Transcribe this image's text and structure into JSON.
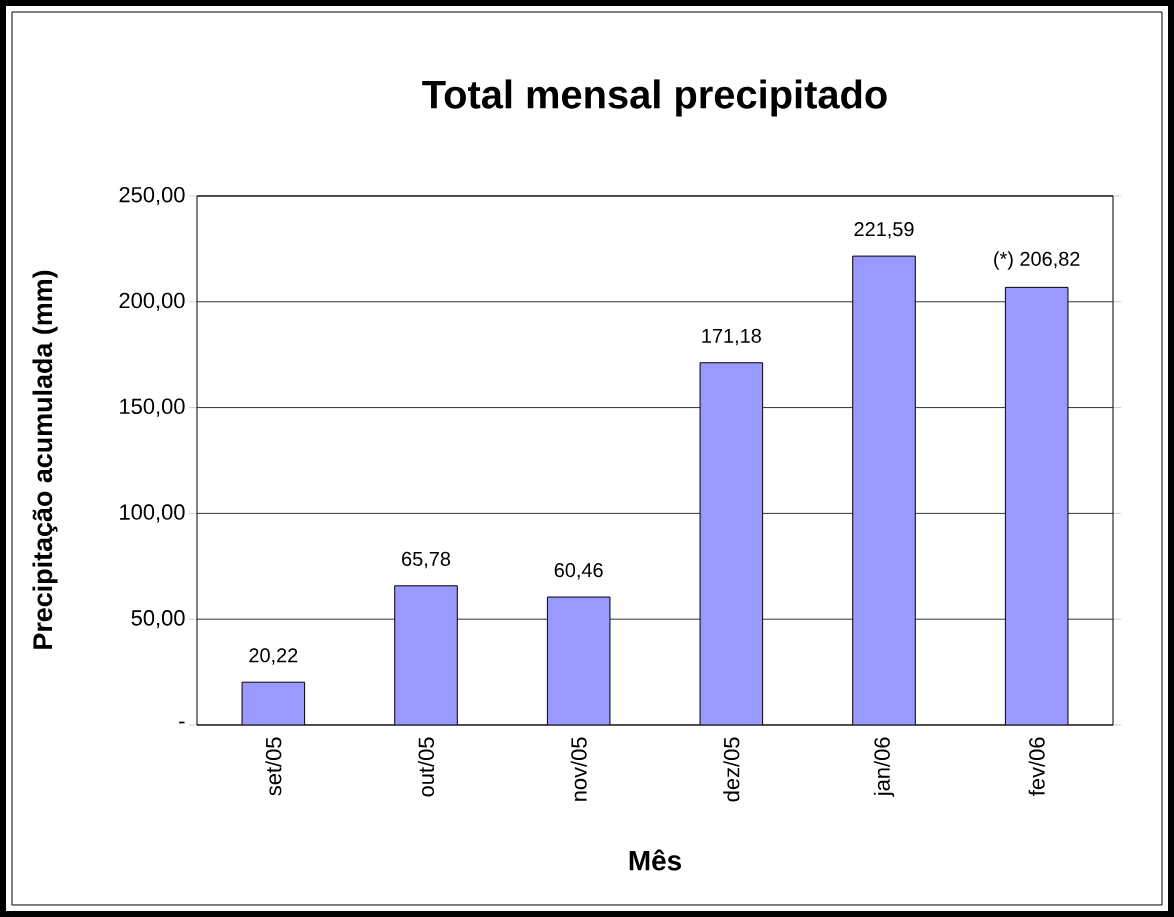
{
  "chart_data": {
    "type": "bar",
    "title": "Total mensal precipitado",
    "xlabel": "Mês",
    "ylabel": "Precipitação acumulada (mm)",
    "categories": [
      "set/05",
      "out/05",
      "nov/05",
      "dez/05",
      "jan/06",
      "fev/06"
    ],
    "values": [
      20.22,
      65.78,
      60.46,
      171.18,
      221.59,
      206.82
    ],
    "value_labels": [
      "20,22",
      "65,78",
      "60,46",
      "171,18",
      "221,59",
      "(*) 206,82"
    ],
    "color": "#9999ff",
    "ylim": [
      0,
      250
    ],
    "yticks": [
      {
        "value": 0,
        "label": "-"
      },
      {
        "value": 50,
        "label": "50,00"
      },
      {
        "value": 100,
        "label": "100,00"
      },
      {
        "value": 150,
        "label": "150,00"
      },
      {
        "value": 200,
        "label": "200,00"
      },
      {
        "value": 250,
        "label": "250,00"
      }
    ],
    "grid": "y"
  }
}
